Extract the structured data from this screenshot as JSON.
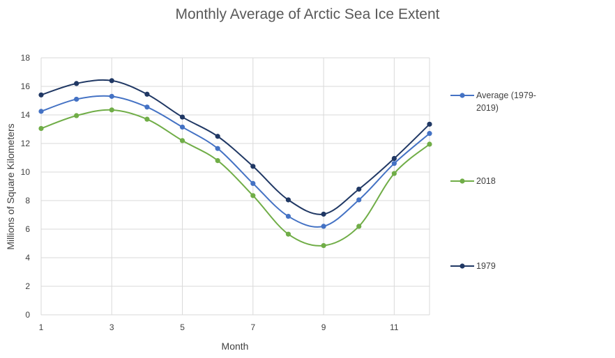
{
  "chart_data": {
    "type": "line",
    "title": "Monthly Average of Arctic Sea Ice Extent",
    "xlabel": "Month",
    "ylabel": "Millions of Square Kilometers",
    "xlim": [
      1,
      12
    ],
    "ylim": [
      0,
      18
    ],
    "x_ticks": [
      1,
      3,
      5,
      7,
      9,
      11
    ],
    "y_ticks": [
      0,
      2,
      4,
      6,
      8,
      10,
      12,
      14,
      16,
      18
    ],
    "grid": true,
    "smooth": true,
    "legend_position": "right",
    "x": [
      1,
      2,
      3,
      4,
      5,
      6,
      7,
      8,
      9,
      10,
      11,
      12
    ],
    "series": [
      {
        "name": "Average (1979-2019)",
        "legend_lines": [
          "Average (1979-",
          "2019)"
        ],
        "color": "#4472c4",
        "values": [
          14.25,
          15.1,
          15.3,
          14.55,
          13.15,
          11.65,
          9.2,
          6.9,
          6.2,
          8.05,
          10.6,
          12.7
        ]
      },
      {
        "name": "2018",
        "legend_lines": [
          "2018"
        ],
        "color": "#70ad47",
        "values": [
          13.05,
          13.95,
          14.35,
          13.7,
          12.2,
          10.8,
          8.35,
          5.65,
          4.85,
          6.2,
          9.9,
          11.95
        ]
      },
      {
        "name": "1979",
        "legend_lines": [
          "1979"
        ],
        "color": "#203864",
        "values": [
          15.4,
          16.2,
          16.4,
          15.45,
          13.85,
          12.5,
          10.4,
          8.05,
          7.05,
          8.8,
          10.95,
          13.35
        ]
      }
    ]
  }
}
